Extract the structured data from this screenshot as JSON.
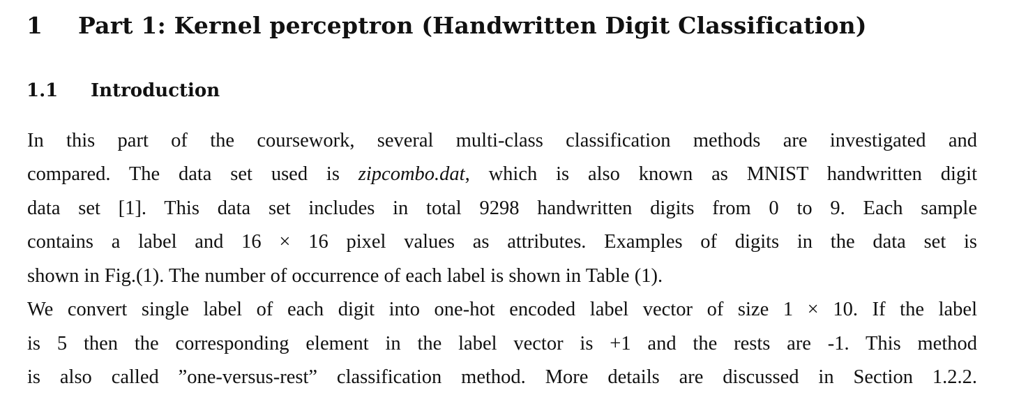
{
  "section": {
    "number": "1",
    "title": "Part 1: Kernel perceptron (Handwritten Digit Classification)"
  },
  "subsection": {
    "number": "1.1",
    "title": "Introduction"
  },
  "paragraph1": {
    "line1": "In this part of the coursework, several multi-class classification methods are investigated and",
    "line2_before": "compared. The data set used is ",
    "line2_dataset": "zipcombo.dat",
    "line2_after": ", which is also known as MNIST handwritten digit",
    "line3": "data set [1]. This data set includes in total 9298 handwritten digits from 0 to 9. Each sample",
    "line4": "contains a label and 16 × 16 pixel values as attributes. Examples of digits in the data set is",
    "line5": "shown in Fig.(1). The number of occurrence of each label is shown in Table (1)."
  },
  "paragraph2": {
    "line1": "We convert single label of each digit into one-hot encoded label vector of size 1 × 10. If the label",
    "line2": "is 5 then the corresponding element in the label vector is +1 and the rests are -1. This method",
    "line3": "is also called ”one-versus-rest” classification method. More details are discussed in Section 1.2.2."
  }
}
